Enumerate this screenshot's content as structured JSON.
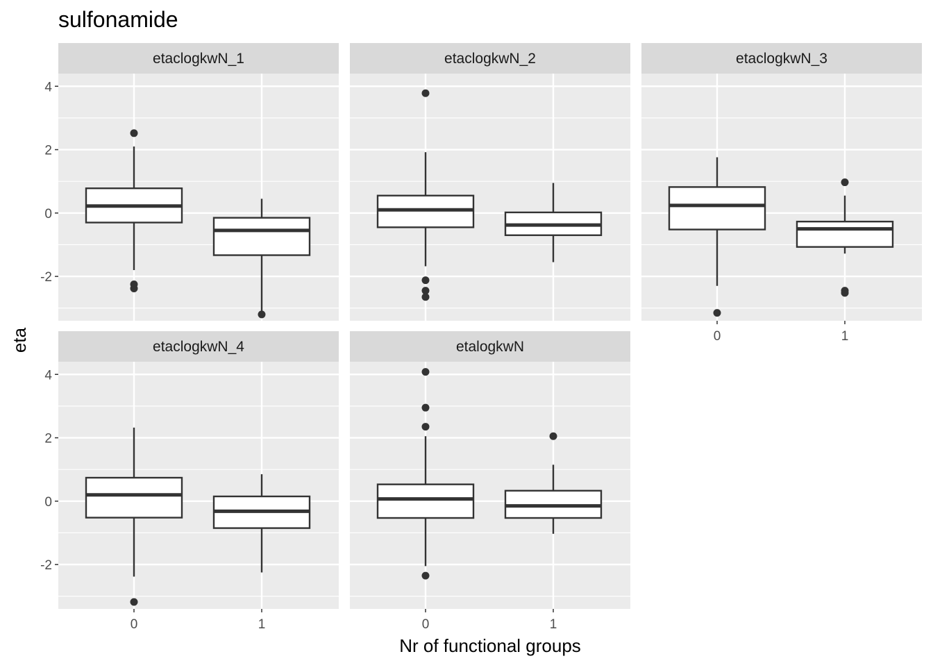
{
  "chart_data": {
    "type": "boxplot",
    "title": "sulfonamide",
    "xlabel": "Nr of functional groups",
    "ylabel": "eta",
    "categories": [
      "0",
      "1"
    ],
    "yticks": [
      -2,
      0,
      2,
      4
    ],
    "ylim": [
      -3.4,
      4.4
    ],
    "panel_bg": "#ebebeb",
    "strip_bg": "#d9d9d9",
    "line_color": "#333333",
    "facet_layout": "3 columns x 2 rows",
    "facets": [
      {
        "name": "etaclogkwN_1",
        "boxes": [
          {
            "x": "0",
            "q1": -0.3,
            "median": 0.22,
            "q3": 0.78,
            "whisker_low": -1.8,
            "whisker_high": 2.1,
            "outliers": [
              2.52,
              -2.25,
              -2.38
            ]
          },
          {
            "x": "1",
            "q1": -1.33,
            "median": -0.55,
            "q3": -0.15,
            "whisker_low": -3.1,
            "whisker_high": 0.45,
            "outliers": [
              -3.2
            ]
          }
        ]
      },
      {
        "name": "etaclogkwN_2",
        "boxes": [
          {
            "x": "0",
            "q1": -0.45,
            "median": 0.1,
            "q3": 0.55,
            "whisker_low": -1.68,
            "whisker_high": 1.92,
            "outliers": [
              3.78,
              -2.12,
              -2.45,
              -2.65
            ]
          },
          {
            "x": "1",
            "q1": -0.7,
            "median": -0.38,
            "q3": 0.02,
            "whisker_low": -1.55,
            "whisker_high": 0.95,
            "outliers": []
          }
        ]
      },
      {
        "name": "etaclogkwN_3",
        "boxes": [
          {
            "x": "0",
            "q1": -0.52,
            "median": 0.24,
            "q3": 0.82,
            "whisker_low": -2.3,
            "whisker_high": 1.76,
            "outliers": [
              -3.15
            ]
          },
          {
            "x": "1",
            "q1": -1.07,
            "median": -0.5,
            "q3": -0.27,
            "whisker_low": -1.28,
            "whisker_high": 0.55,
            "outliers": [
              0.97,
              -2.45,
              -2.52
            ]
          }
        ]
      },
      {
        "name": "etaclogkwN_4",
        "boxes": [
          {
            "x": "0",
            "q1": -0.52,
            "median": 0.2,
            "q3": 0.74,
            "whisker_low": -2.38,
            "whisker_high": 2.32,
            "outliers": [
              -3.18
            ]
          },
          {
            "x": "1",
            "q1": -0.85,
            "median": -0.32,
            "q3": 0.15,
            "whisker_low": -2.25,
            "whisker_high": 0.85,
            "outliers": []
          }
        ]
      },
      {
        "name": "etalogkwN",
        "boxes": [
          {
            "x": "0",
            "q1": -0.53,
            "median": 0.07,
            "q3": 0.53,
            "whisker_low": -2.05,
            "whisker_high": 2.05,
            "outliers": [
              4.08,
              2.95,
              2.35,
              -2.35
            ]
          },
          {
            "x": "1",
            "q1": -0.53,
            "median": -0.15,
            "q3": 0.33,
            "whisker_low": -1.03,
            "whisker_high": 1.15,
            "outliers": [
              2.05
            ]
          }
        ]
      }
    ]
  }
}
